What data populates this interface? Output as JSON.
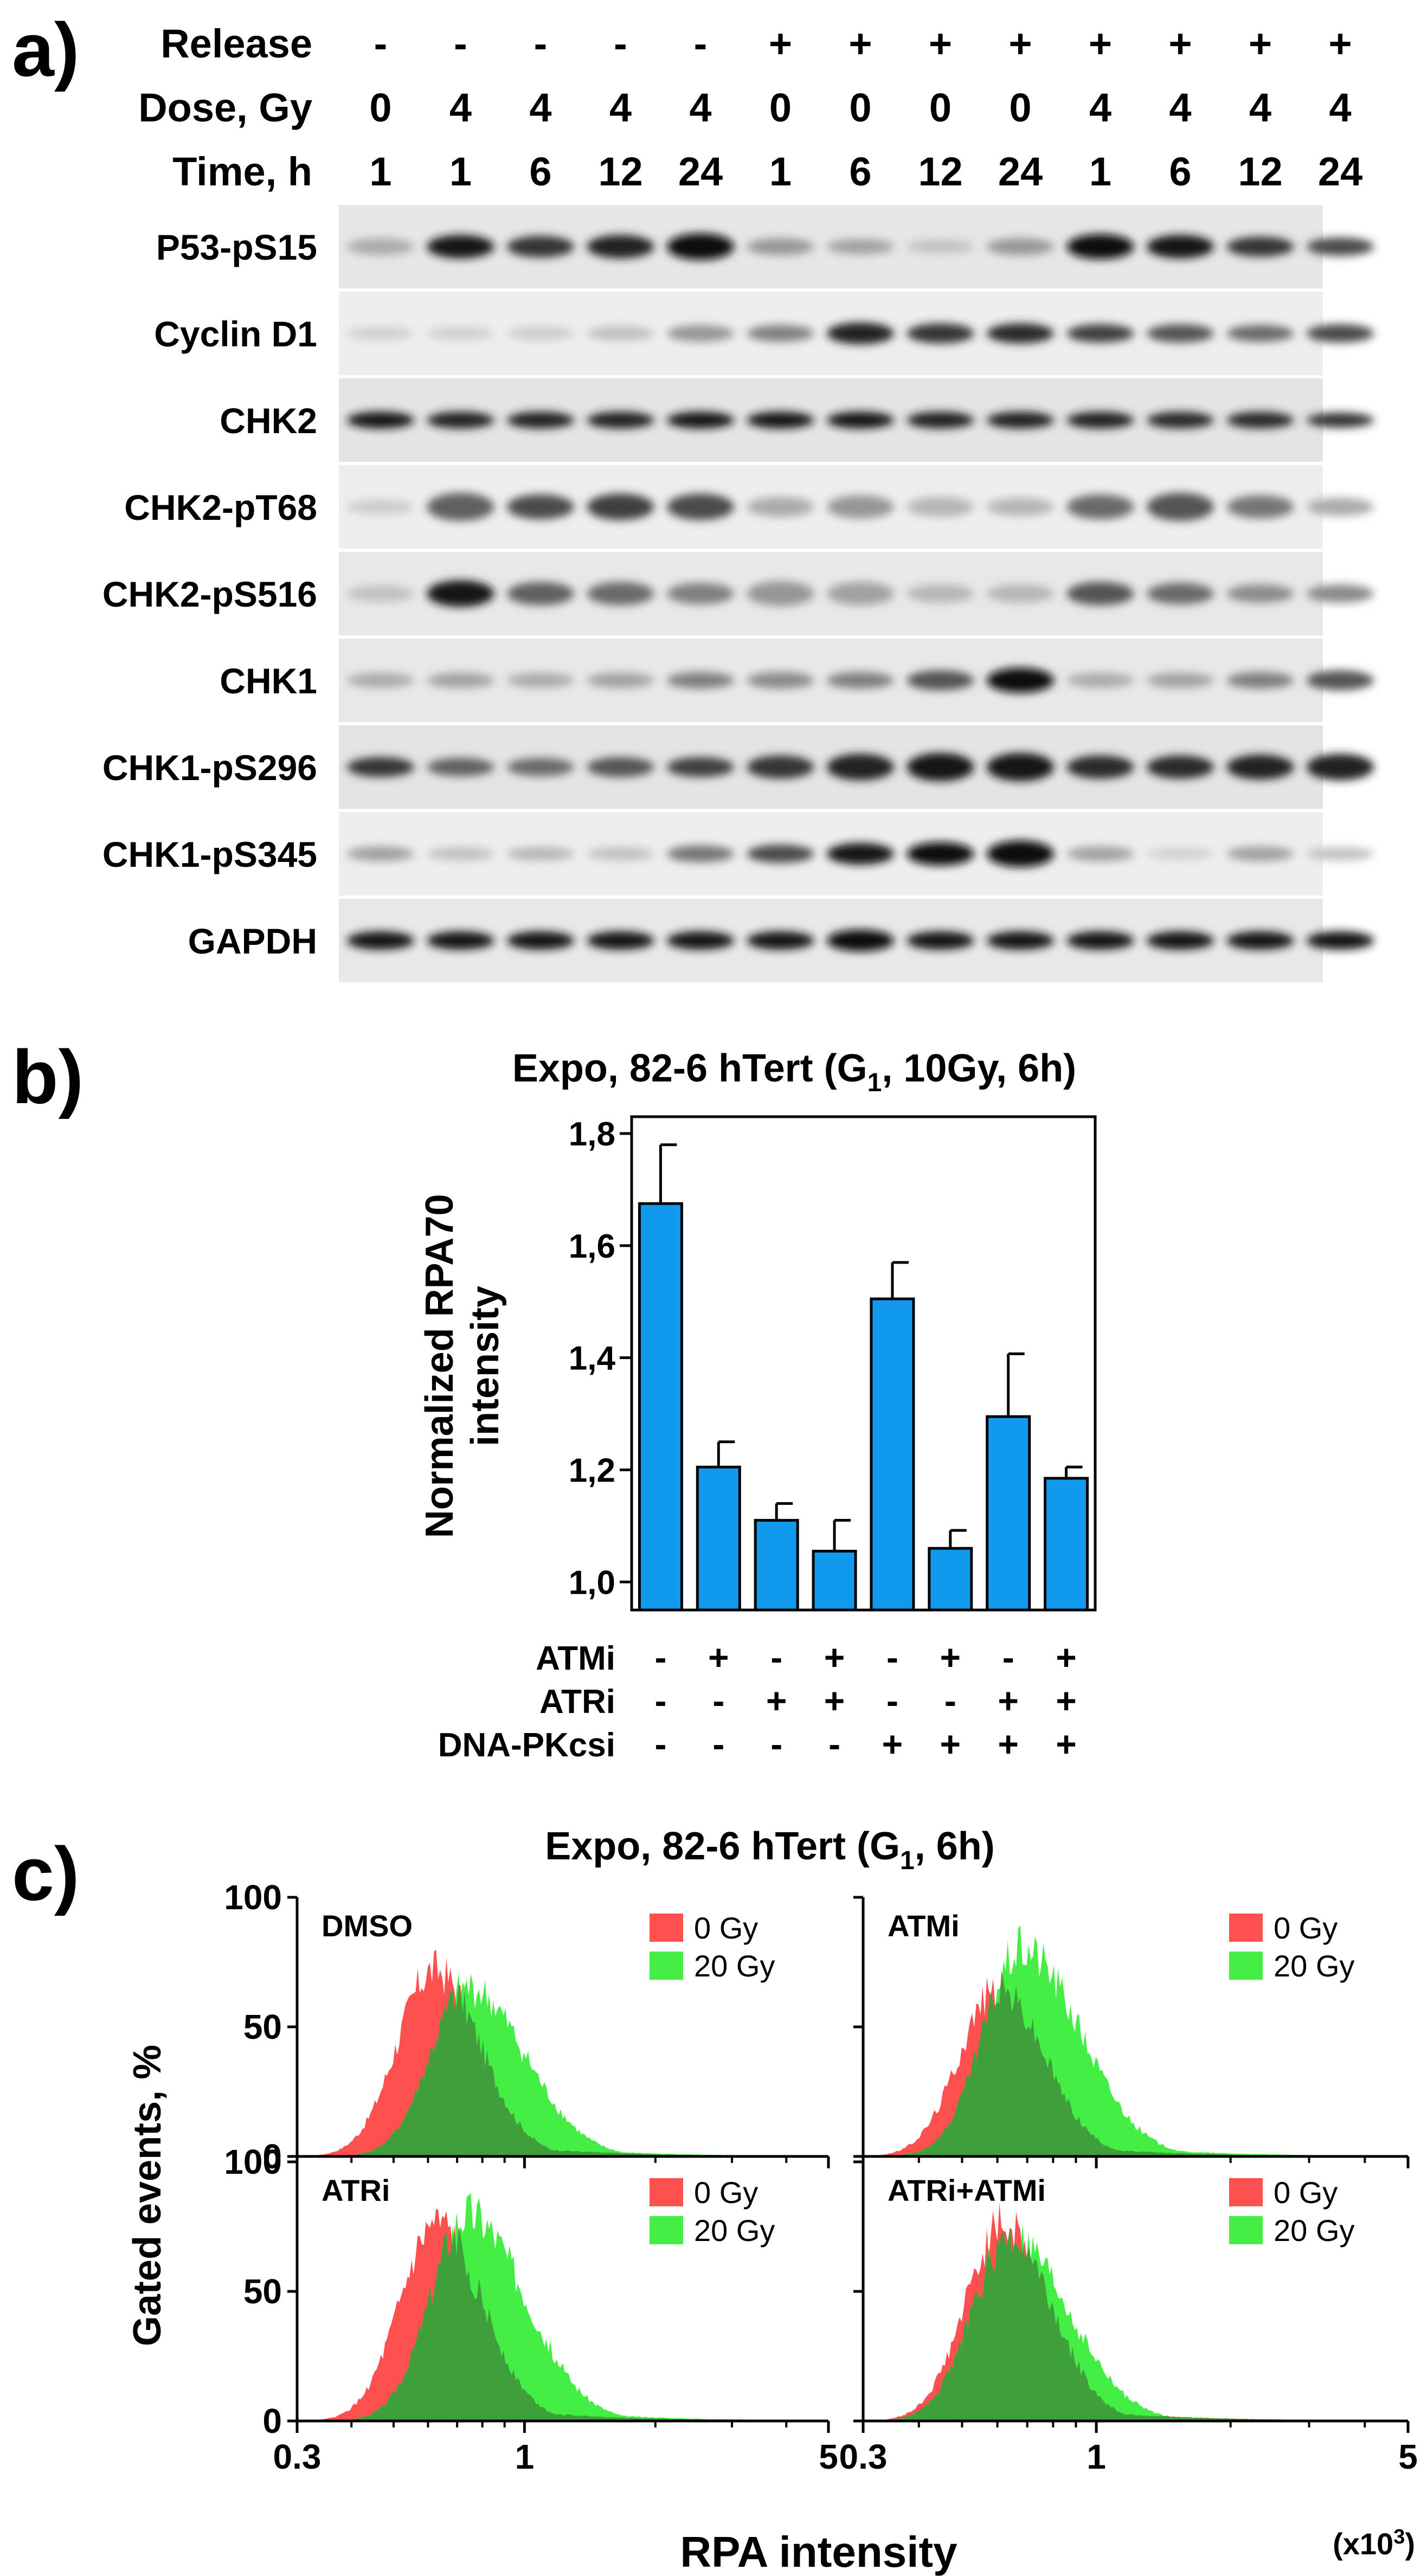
{
  "panel_a": {
    "label": "a)",
    "header_rows": [
      {
        "label": "Release",
        "values": [
          "-",
          "-",
          "-",
          "-",
          "-",
          "+",
          "+",
          "+",
          "+",
          "+",
          "+",
          "+",
          "+"
        ]
      },
      {
        "label": "Dose, Gy",
        "values": [
          "0",
          "4",
          "4",
          "4",
          "4",
          "0",
          "0",
          "0",
          "0",
          "4",
          "4",
          "4",
          "4"
        ]
      },
      {
        "label": "Time, h",
        "values": [
          "1",
          "1",
          "6",
          "12",
          "24",
          "1",
          "6",
          "12",
          "24",
          "1",
          "6",
          "12",
          "24"
        ]
      }
    ],
    "blots": [
      {
        "name": "P53-pS15",
        "intensity": [
          0.25,
          0.95,
          0.8,
          0.9,
          1.0,
          0.35,
          0.3,
          0.15,
          0.35,
          1.0,
          0.95,
          0.8,
          0.7
        ],
        "height": [
          0.35,
          0.55,
          0.5,
          0.55,
          0.65,
          0.35,
          0.3,
          0.25,
          0.35,
          0.6,
          0.55,
          0.45,
          0.4
        ],
        "bg": "#e6e6e6"
      },
      {
        "name": "Cyclin D1",
        "intensity": [
          0.08,
          0.08,
          0.1,
          0.15,
          0.35,
          0.45,
          0.9,
          0.8,
          0.85,
          0.75,
          0.65,
          0.55,
          0.7
        ],
        "height": [
          0.25,
          0.25,
          0.25,
          0.3,
          0.35,
          0.35,
          0.5,
          0.45,
          0.45,
          0.4,
          0.4,
          0.35,
          0.4
        ],
        "bg": "#eeeeee"
      },
      {
        "name": "CHK2",
        "intensity": [
          0.95,
          0.9,
          0.9,
          0.9,
          0.95,
          0.95,
          0.95,
          0.9,
          0.9,
          0.9,
          0.85,
          0.85,
          0.8
        ],
        "height": [
          0.35,
          0.35,
          0.35,
          0.35,
          0.35,
          0.35,
          0.35,
          0.35,
          0.35,
          0.35,
          0.35,
          0.35,
          0.3
        ],
        "bg": "#e4e4e4"
      },
      {
        "name": "CHK2-pT68",
        "intensity": [
          0.1,
          0.6,
          0.7,
          0.75,
          0.7,
          0.25,
          0.35,
          0.2,
          0.2,
          0.55,
          0.65,
          0.5,
          0.25
        ],
        "height": [
          0.3,
          0.7,
          0.6,
          0.65,
          0.65,
          0.45,
          0.55,
          0.45,
          0.4,
          0.6,
          0.7,
          0.55,
          0.4
        ],
        "bg": "#eeeeee"
      },
      {
        "name": "CHK2-pS516",
        "intensity": [
          0.15,
          0.95,
          0.6,
          0.55,
          0.45,
          0.35,
          0.3,
          0.2,
          0.2,
          0.65,
          0.55,
          0.4,
          0.4
        ],
        "height": [
          0.35,
          0.65,
          0.55,
          0.55,
          0.5,
          0.6,
          0.55,
          0.4,
          0.4,
          0.55,
          0.5,
          0.4,
          0.4
        ],
        "bg": "#e8e8e8"
      },
      {
        "name": "CHK1",
        "intensity": [
          0.25,
          0.3,
          0.25,
          0.3,
          0.45,
          0.4,
          0.45,
          0.65,
          1.0,
          0.25,
          0.3,
          0.45,
          0.65
        ],
        "height": [
          0.3,
          0.3,
          0.3,
          0.3,
          0.35,
          0.35,
          0.35,
          0.45,
          0.6,
          0.3,
          0.3,
          0.35,
          0.45
        ],
        "bg": "#e8e8e8"
      },
      {
        "name": "CHK1-pS296",
        "intensity": [
          0.8,
          0.6,
          0.55,
          0.65,
          0.75,
          0.8,
          0.9,
          0.95,
          0.95,
          0.85,
          0.85,
          0.9,
          0.9
        ],
        "height": [
          0.45,
          0.4,
          0.4,
          0.45,
          0.45,
          0.55,
          0.65,
          0.7,
          0.7,
          0.55,
          0.55,
          0.6,
          0.65
        ],
        "bg": "#e4e4e4"
      },
      {
        "name": "CHK1-pS345",
        "intensity": [
          0.3,
          0.15,
          0.2,
          0.15,
          0.5,
          0.7,
          0.95,
          1.0,
          1.0,
          0.3,
          0.08,
          0.3,
          0.15
        ],
        "height": [
          0.3,
          0.25,
          0.25,
          0.25,
          0.35,
          0.4,
          0.5,
          0.55,
          0.65,
          0.3,
          0.2,
          0.3,
          0.25
        ],
        "bg": "#eeeeee"
      },
      {
        "name": "GAPDH",
        "intensity": [
          0.95,
          0.95,
          0.95,
          0.95,
          0.95,
          0.95,
          1.0,
          0.95,
          0.95,
          0.95,
          0.95,
          0.95,
          0.95
        ],
        "height": [
          0.4,
          0.4,
          0.4,
          0.4,
          0.4,
          0.4,
          0.5,
          0.4,
          0.4,
          0.4,
          0.4,
          0.4,
          0.4
        ],
        "bg": "#e8e8e8"
      }
    ]
  },
  "panel_b": {
    "label": "b)",
    "subscript": "1",
    "title_pre": "Expo, 82-6 hTert (G",
    "title_post": ", 10Gy, 6h)",
    "ylabel_line1": "Normalized RPA70",
    "ylabel_line2": "intensity",
    "row_labels": [
      "ATMi",
      "ATRi",
      "DNA-PKcsi"
    ],
    "conditions": [
      [
        "-",
        "-",
        "-"
      ],
      [
        "+",
        "-",
        "-"
      ],
      [
        "-",
        "+",
        "-"
      ],
      [
        "+",
        "+",
        "-"
      ],
      [
        "-",
        "-",
        "+"
      ],
      [
        "+",
        "-",
        "+"
      ],
      [
        "-",
        "+",
        "+"
      ],
      [
        "+",
        "+",
        "+"
      ]
    ],
    "bar_color": "#1199ee"
  },
  "panel_c": {
    "label": "c)",
    "subscript": "1",
    "title_pre": "Expo, 82-6 hTert (G",
    "title_post": ", 6h)",
    "ylabel": "Gated events, %",
    "xlabel": "RPA intensity",
    "x_unit": "(x10",
    "x_unit_sup": "3",
    "x_unit_close": ")",
    "legend": [
      {
        "label": "0 Gy",
        "color": "#ff5050"
      },
      {
        "label": "20 Gy",
        "color": "#44ee44"
      }
    ],
    "overlap_color": "#3f9f3a"
  },
  "chart_data": [
    {
      "type": "bar",
      "title": "Expo, 82-6 hTert (G1, 10Gy, 6h)",
      "xlabel": "",
      "ylabel": "Normalized RPA70 intensity",
      "ylim": [
        0.95,
        1.83
      ],
      "yticks": [
        1.0,
        1.2,
        1.4,
        1.6,
        1.8
      ],
      "ytick_labels": [
        "1,0",
        "1,2",
        "1,4",
        "1,6",
        "1,8"
      ],
      "categories": [
        "none",
        "ATMi",
        "ATRi",
        "ATMi+ATRi",
        "DNA-PKcsi",
        "ATMi+DNA-PKcsi",
        "ATRi+DNA-PKcsi",
        "ATMi+ATRi+DNA-PKcsi"
      ],
      "values": [
        1.675,
        1.205,
        1.11,
        1.055,
        1.505,
        1.06,
        1.295,
        1.185
      ],
      "errors": [
        0.105,
        0.045,
        0.03,
        0.055,
        0.065,
        0.032,
        0.112,
        0.02
      ]
    },
    {
      "type": "area",
      "title": "Expo, 82-6 hTert (G1, 6h)",
      "xlabel": "RPA intensity",
      "ylabel": "Gated events, %",
      "x_scale": "log",
      "xlim": [
        0.3,
        5
      ],
      "ylim": [
        0,
        100
      ],
      "xticks": [
        0.3,
        1,
        5
      ],
      "xtick_labels": [
        "0.3",
        "1",
        "5"
      ],
      "yticks": [
        0,
        50,
        100
      ],
      "panels": [
        {
          "label": "DMSO",
          "series": [
            {
              "name": "0 Gy",
              "values_peak": 72,
              "peak_x": 0.62
            },
            {
              "name": "20 Gy",
              "values_peak": 65,
              "peak_x": 0.74
            }
          ]
        },
        {
          "label": "ATMi",
          "series": [
            {
              "name": "0 Gy",
              "values_peak": 65,
              "peak_x": 0.6
            },
            {
              "name": "20 Gy",
              "values_peak": 80,
              "peak_x": 0.68
            }
          ]
        },
        {
          "label": "ATRi",
          "series": [
            {
              "name": "0 Gy",
              "values_peak": 75,
              "peak_x": 0.63
            },
            {
              "name": "20 Gy",
              "values_peak": 80,
              "peak_x": 0.74
            }
          ]
        },
        {
          "label": "ATRi+ATMi",
          "series": [
            {
              "name": "0 Gy",
              "values_peak": 76,
              "peak_x": 0.62
            },
            {
              "name": "20 Gy",
              "values_peak": 70,
              "peak_x": 0.64
            }
          ]
        }
      ]
    }
  ]
}
